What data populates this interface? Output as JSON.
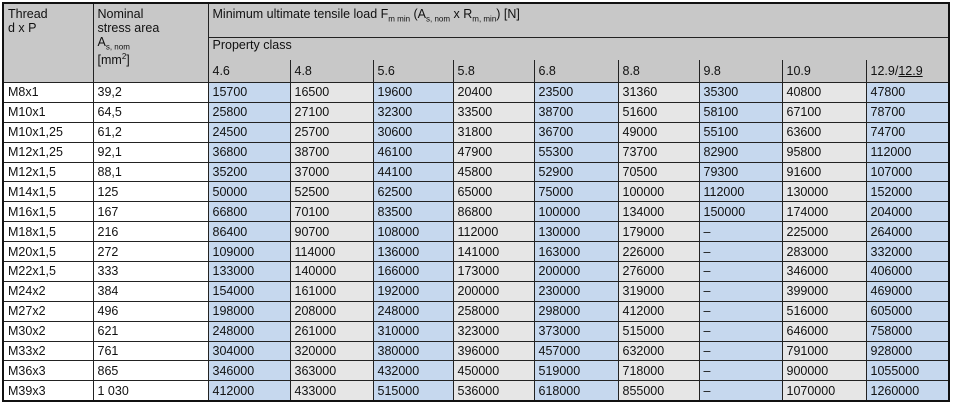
{
  "header": {
    "thread_label_1": "Thread",
    "thread_label_2": "d x P",
    "area_label_1": "Nominal",
    "area_label_2": "stress area",
    "area_symbol": "A",
    "area_symbol_sub": "s, nom",
    "area_unit_open": "[mm",
    "area_unit_sup": "2",
    "area_unit_close": "]",
    "load_title": "Minimum ultimate tensile load F",
    "load_sub1": "m min",
    "load_mid1": " (A",
    "load_sub2": "s, nom",
    "load_mid2": " x R",
    "load_sub3": "m, min",
    "load_end": ") [N]",
    "property_class": "Property class",
    "classes": [
      "4.6",
      "4.8",
      "5.6",
      "5.8",
      "6.8",
      "8.8",
      "9.8",
      "10.9",
      "12.9/"
    ],
    "last_class_underlined": "12.9"
  },
  "column_colors": {
    "blue": "#c6d8ee",
    "grey": "#e6e6e6",
    "header": "#c8c8c8"
  },
  "rows": [
    {
      "thread": "M8x1",
      "area": "39,2",
      "values": [
        "15700",
        "16500",
        "19600",
        "20400",
        "23500",
        "31360",
        "35300",
        "40800",
        "47800"
      ]
    },
    {
      "thread": "M10x1",
      "area": "64,5",
      "values": [
        "25800",
        "27100",
        "32300",
        "33500",
        "38700",
        "51600",
        "58100",
        "67100",
        "78700"
      ]
    },
    {
      "thread": "M10x1,25",
      "area": "61,2",
      "values": [
        "24500",
        "25700",
        "30600",
        "31800",
        "36700",
        "49000",
        "55100",
        "63600",
        "74700"
      ]
    },
    {
      "thread": "M12x1,25",
      "area": "92,1",
      "values": [
        "36800",
        "38700",
        "46100",
        "47900",
        "55300",
        "73700",
        "82900",
        "95800",
        "112000"
      ]
    },
    {
      "thread": "M12x1,5",
      "area": "88,1",
      "values": [
        "35200",
        "37000",
        "44100",
        "45800",
        "52900",
        "70500",
        "79300",
        "91600",
        "107000"
      ]
    },
    {
      "thread": "M14x1,5",
      "area": "125",
      "values": [
        "50000",
        "52500",
        "62500",
        "65000",
        "75000",
        "100000",
        "112000",
        "130000",
        "152000"
      ]
    },
    {
      "thread": "M16x1,5",
      "area": "167",
      "values": [
        "66800",
        "70100",
        "83500",
        "86800",
        "100000",
        "134000",
        "150000",
        "174000",
        "204000"
      ]
    },
    {
      "thread": "M18x1,5",
      "area": "216",
      "values": [
        "86400",
        "90700",
        "108000",
        "112000",
        "130000",
        "179000",
        "–",
        "225000",
        "264000"
      ]
    },
    {
      "thread": "M20x1,5",
      "area": "272",
      "values": [
        "109000",
        "114000",
        "136000",
        "141000",
        "163000",
        "226000",
        "–",
        "283000",
        "332000"
      ]
    },
    {
      "thread": "M22x1,5",
      "area": "333",
      "values": [
        "133000",
        "140000",
        "166000",
        "173000",
        "200000",
        "276000",
        "–",
        "346000",
        "406000"
      ]
    },
    {
      "thread": "M24x2",
      "area": "384",
      "values": [
        "154000",
        "161000",
        "192000",
        "200000",
        "230000",
        "319000",
        "–",
        "399000",
        "469000"
      ]
    },
    {
      "thread": "M27x2",
      "area": "496",
      "values": [
        "198000",
        "208000",
        "248000",
        "258000",
        "298000",
        "412000",
        "–",
        "516000",
        "605000"
      ]
    },
    {
      "thread": "M30x2",
      "area": "621",
      "values": [
        "248000",
        "261000",
        "310000",
        "323000",
        "373000",
        "515000",
        "–",
        "646000",
        "758000"
      ]
    },
    {
      "thread": "M33x2",
      "area": "761",
      "values": [
        "304000",
        "320000",
        "380000",
        "396000",
        "457000",
        "632000",
        "–",
        "791000",
        "928000"
      ]
    },
    {
      "thread": "M36x3",
      "area": "865",
      "values": [
        "346000",
        "363000",
        "432000",
        "450000",
        "519000",
        "718000",
        "–",
        "900000",
        "1055000"
      ]
    },
    {
      "thread": "M39x3",
      "area": "1 030",
      "values": [
        "412000",
        "433000",
        "515000",
        "536000",
        "618000",
        "855000",
        "–",
        "1070000",
        "1260000"
      ]
    }
  ]
}
